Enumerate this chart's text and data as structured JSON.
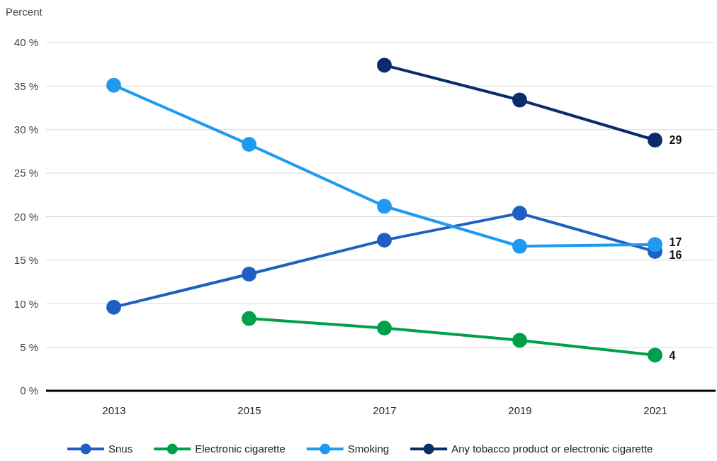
{
  "chart_data": {
    "type": "line",
    "ylabel": "Percent",
    "categories": [
      "2013",
      "2015",
      "2017",
      "2019",
      "2021"
    ],
    "ylim": [
      0,
      40
    ],
    "yticks": [
      {
        "value": 0,
        "label": "0 %"
      },
      {
        "value": 5,
        "label": "5 %"
      },
      {
        "value": 10,
        "label": "10 %"
      },
      {
        "value": 15,
        "label": "15 %"
      },
      {
        "value": 20,
        "label": "20 %"
      },
      {
        "value": 25,
        "label": "25 %"
      },
      {
        "value": 30,
        "label": "30 %"
      },
      {
        "value": 35,
        "label": "35 %"
      },
      {
        "value": 40,
        "label": "40 %"
      }
    ],
    "grid": "y",
    "legend": "bottom",
    "marker": "circle",
    "series": [
      {
        "name": "Snus",
        "color": "#1f5fc4",
        "values": [
          9.6,
          13.4,
          17.3,
          20.4,
          16.0
        ],
        "value_labels": [
          null,
          null,
          null,
          null,
          "16"
        ]
      },
      {
        "name": "Electronic cigarette",
        "color": "#00a04a",
        "values": [
          null,
          8.3,
          7.2,
          5.8,
          4.1
        ],
        "value_labels": [
          null,
          null,
          null,
          null,
          "4"
        ]
      },
      {
        "name": "Smoking",
        "color": "#1e9bf0",
        "values": [
          35.1,
          28.3,
          21.2,
          16.6,
          16.8
        ],
        "value_labels": [
          null,
          null,
          null,
          null,
          "17"
        ]
      },
      {
        "name": "Any tobacco product or electronic cigarette",
        "color": "#0b2c6b",
        "values": [
          null,
          null,
          37.4,
          33.4,
          28.8
        ],
        "value_labels": [
          null,
          null,
          null,
          null,
          "29"
        ]
      }
    ]
  }
}
